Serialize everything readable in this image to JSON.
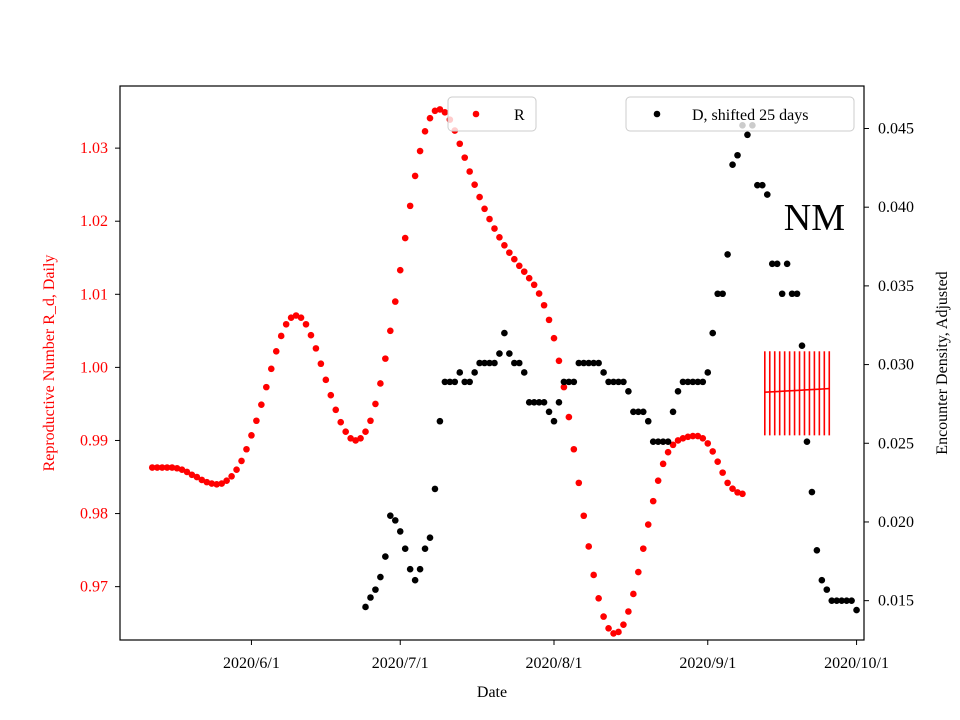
{
  "chart_data": {
    "type": "scatter",
    "title": "",
    "annotation": "NM",
    "xlabel": "Date",
    "ylabel_left": "Reproductive Number R_d, Daily",
    "ylabel_right": "Encounter Density, Adjusted",
    "x_start_date": "2020-05-12",
    "x_tick_labels": [
      "2020/6/1",
      "2020/7/1",
      "2020/8/1",
      "2020/9/1",
      "2020/10/1"
    ],
    "x_tick_days": [
      20,
      50,
      81,
      112,
      142
    ],
    "xlim_days": [
      -6.5,
      143.5
    ],
    "ylim_left": [
      0.9627,
      1.0385
    ],
    "ylim_right": [
      0.0125,
      0.0477
    ],
    "y_left_ticks": [
      "0.97",
      "0.98",
      "0.99",
      "1.00",
      "1.01",
      "1.02",
      "1.03"
    ],
    "y_right_ticks": [
      "0.015",
      "0.020",
      "0.025",
      "0.030",
      "0.035",
      "0.040",
      "0.045"
    ],
    "left_axis_color": "#ff0000",
    "right_axis_color": "#000000",
    "legend": [
      {
        "label": "R",
        "color": "#ff0000",
        "position": "top-center"
      },
      {
        "label": "D, shifted 25 days",
        "color": "#000000",
        "position": "top-right"
      }
    ],
    "series": [
      {
        "name": "R",
        "axis": "left",
        "color": "#ff0000",
        "x_start": 0,
        "values": [
          0.9863,
          0.9863,
          0.9863,
          0.9863,
          0.9863,
          0.9862,
          0.986,
          0.9857,
          0.9853,
          0.985,
          0.9846,
          0.9843,
          0.9841,
          0.984,
          0.9841,
          0.9845,
          0.9851,
          0.986,
          0.9872,
          0.9888,
          0.9907,
          0.9927,
          0.9949,
          0.9973,
          0.9998,
          1.0022,
          1.0043,
          1.0059,
          1.0068,
          1.0071,
          1.0068,
          1.0059,
          1.0044,
          1.0026,
          1.0005,
          0.9983,
          0.9962,
          0.9942,
          0.9925,
          0.9912,
          0.9903,
          0.99,
          0.9903,
          0.9912,
          0.9927,
          0.995,
          0.9978,
          1.0012,
          1.005,
          1.009,
          1.0133,
          1.0177,
          1.0221,
          1.0262,
          1.0296,
          1.0323,
          1.0341,
          1.0351,
          1.0353,
          1.0349,
          1.0339,
          1.0324,
          1.0306,
          1.0287,
          1.0268,
          1.025,
          1.0233,
          1.0217,
          1.0203,
          1.019,
          1.0178,
          1.0167,
          1.0157,
          1.0148,
          1.0139,
          1.0131,
          1.0122,
          1.0113,
          1.0101,
          1.0085,
          1.0065,
          1.004,
          1.0009,
          0.9973,
          0.9932,
          0.9888,
          0.9842,
          0.9797,
          0.9755,
          0.9716,
          0.9684,
          0.9659,
          0.9643,
          0.9636,
          0.9638,
          0.9648,
          0.9666,
          0.969,
          0.972,
          0.9752,
          0.9785,
          0.9817,
          0.9845,
          0.9868,
          0.9884,
          0.9894,
          0.99,
          0.9903,
          0.9905,
          0.9906,
          0.9906,
          0.9903,
          0.9896,
          0.9885,
          0.9871,
          0.9856,
          0.9842,
          0.9834,
          0.9829,
          0.9827
        ],
        "error_bars": {
          "x_start": 123.5,
          "count": 14,
          "center_start": 0.9966,
          "center_end": 0.9971,
          "upper": 1.0022,
          "lower": 0.9907
        }
      },
      {
        "name": "D, shifted 25 days",
        "axis": "right",
        "color": "#000000",
        "x": [
          43,
          44,
          45,
          46,
          47,
          48,
          49,
          50,
          51,
          52,
          53,
          54,
          55,
          56,
          57,
          58,
          59,
          60,
          61,
          62,
          63,
          64,
          65,
          66,
          67,
          68,
          69,
          70,
          71,
          72,
          73,
          74,
          75,
          76,
          77,
          78,
          79,
          80,
          81,
          82,
          83,
          84,
          85,
          86,
          87,
          88,
          89,
          90,
          91,
          92,
          93,
          94,
          95,
          96,
          97,
          98,
          99,
          100,
          101,
          102,
          103,
          104,
          105,
          106,
          107,
          108,
          109,
          110,
          111,
          112,
          113,
          114,
          115,
          116,
          117,
          118,
          119,
          120,
          121,
          122,
          123,
          124,
          125,
          126,
          127,
          128,
          129,
          130,
          131,
          132,
          133,
          134,
          135,
          136,
          137,
          138,
          139,
          140,
          141,
          142
        ],
        "values": [
          0.0146,
          0.0152,
          0.0157,
          0.0165,
          0.0178,
          0.0204,
          0.0201,
          0.0194,
          0.0183,
          0.017,
          0.0163,
          0.017,
          0.0183,
          0.019,
          0.0221,
          0.0264,
          0.0289,
          0.0289,
          0.0289,
          0.0295,
          0.0289,
          0.0289,
          0.0295,
          0.0301,
          0.0301,
          0.0301,
          0.0301,
          0.0307,
          0.032,
          0.0307,
          0.0301,
          0.0301,
          0.0295,
          0.0276,
          0.0276,
          0.0276,
          0.0276,
          0.027,
          0.0264,
          0.0276,
          0.0289,
          0.0289,
          0.0289,
          0.0301,
          0.0301,
          0.0301,
          0.0301,
          0.0301,
          0.0295,
          0.0289,
          0.0289,
          0.0289,
          0.0289,
          0.0283,
          0.027,
          0.027,
          0.027,
          0.0264,
          0.0251,
          0.0251,
          0.0251,
          0.0251,
          0.027,
          0.0283,
          0.0289,
          0.0289,
          0.0289,
          0.0289,
          0.0289,
          0.0295,
          0.032,
          0.0345,
          0.0345,
          0.037,
          0.0427,
          0.0433,
          0.0452,
          0.0446,
          0.0452,
          0.0414,
          0.0414,
          0.0408,
          0.0364,
          0.0364,
          0.0345,
          0.0364,
          0.0345,
          0.0345,
          0.0312,
          0.0251,
          0.0219,
          0.0182,
          0.0163,
          0.0157,
          0.015,
          0.015,
          0.015,
          0.015,
          0.015,
          0.0144
        ]
      }
    ]
  }
}
